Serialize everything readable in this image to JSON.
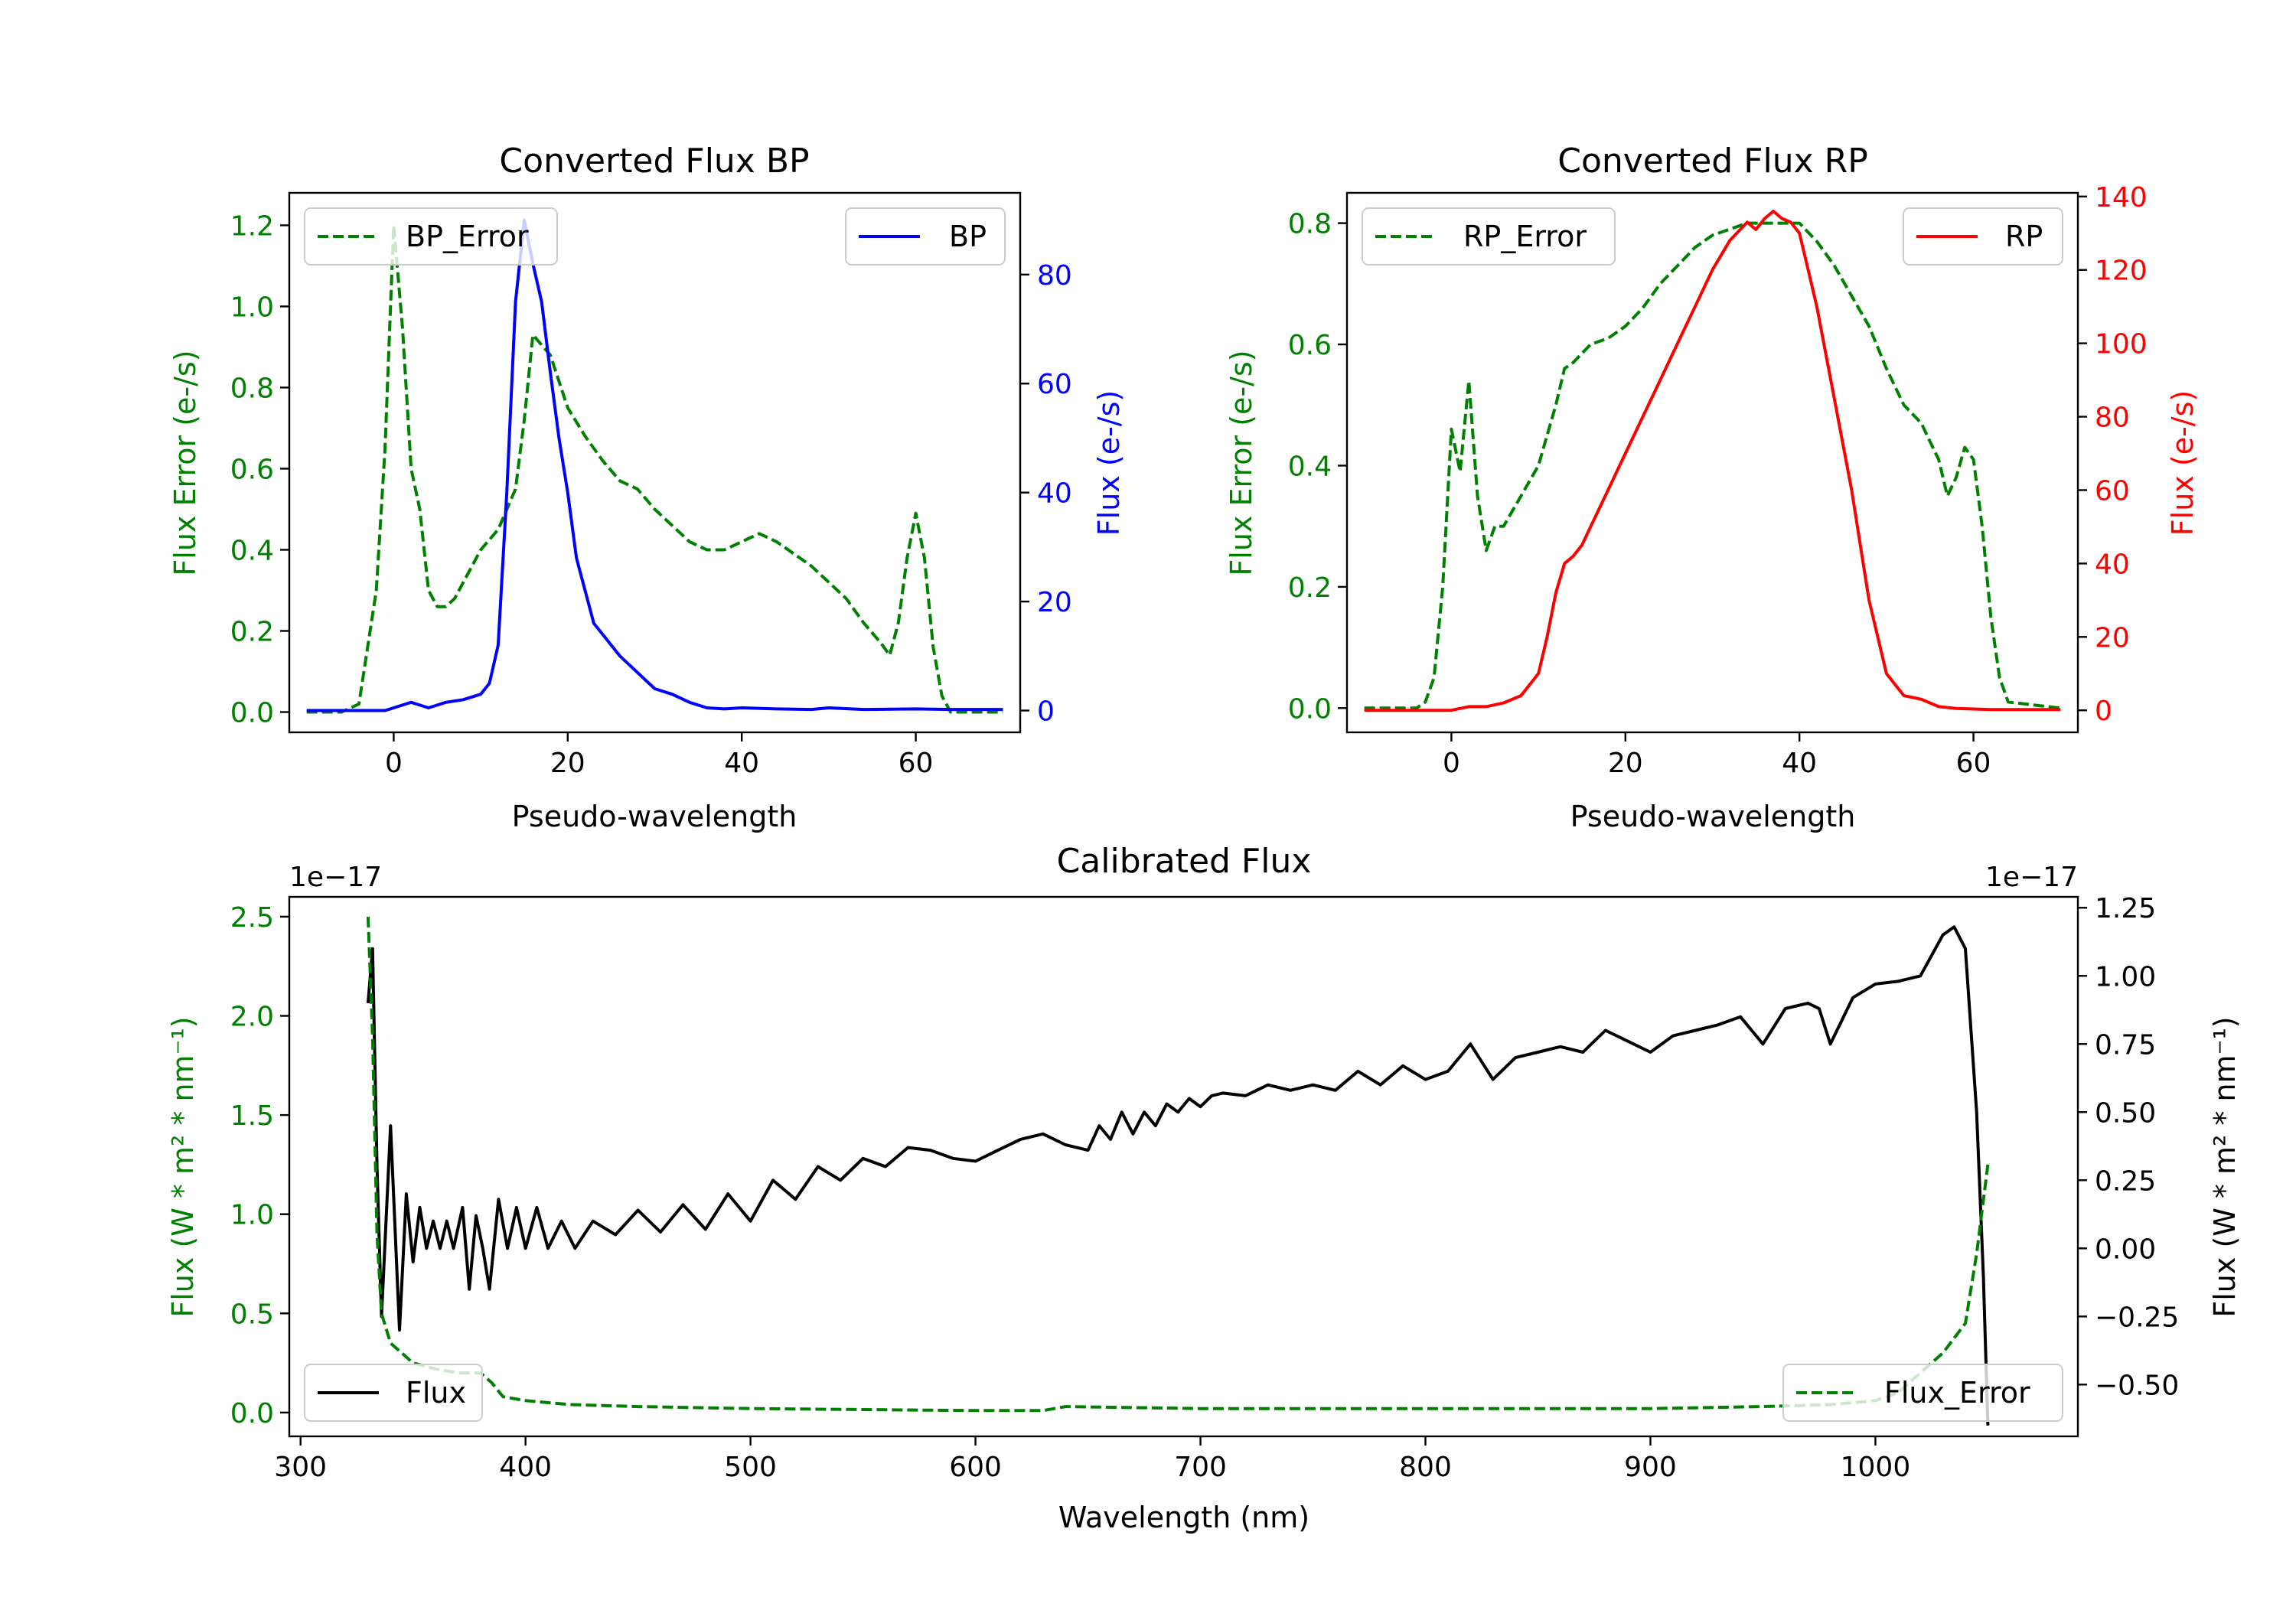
{
  "colors": {
    "green": "#008000",
    "blue": "#0000ff",
    "red": "#ff0000",
    "black": "#000000"
  },
  "chart_data": [
    {
      "type": "line",
      "title": "Converted Flux BP",
      "xlabel": "Pseudo-wavelength",
      "ylabel_left": "Flux Error (e-/s)",
      "ylabel_right": "Flux (e-/s)",
      "xlim": [
        -12,
        72
      ],
      "ylim_left": [
        -0.05,
        1.28
      ],
      "ylim_right": [
        -4,
        95
      ],
      "xticks": [
        0,
        20,
        40,
        60
      ],
      "xtick_labels": [
        "0",
        "20",
        "40",
        "60"
      ],
      "yticks_left": [
        0.0,
        0.2,
        0.4,
        0.6,
        0.8,
        1.0,
        1.2
      ],
      "ytick_labels_left": [
        "0.0",
        "0.2",
        "0.4",
        "0.6",
        "0.8",
        "1.0",
        "1.2"
      ],
      "yticks_right": [
        0,
        20,
        40,
        60,
        80
      ],
      "ytick_labels_right": [
        "0",
        "20",
        "40",
        "60",
        "80"
      ],
      "series": [
        {
          "name": "BP_Error",
          "axis": "left",
          "style": "dashed",
          "color": "#008000",
          "x": [
            -10,
            -6,
            -4,
            -2,
            -1,
            0,
            1,
            2,
            3,
            4,
            5,
            6,
            7,
            8,
            10,
            12,
            14,
            15,
            16,
            18,
            20,
            22,
            24,
            26,
            28,
            30,
            32,
            34,
            36,
            38,
            40,
            42,
            44,
            46,
            48,
            50,
            52,
            54,
            56,
            57,
            58,
            59,
            60,
            61,
            62,
            63,
            64,
            66,
            70
          ],
          "y": [
            0,
            0,
            0.02,
            0.3,
            0.65,
            1.2,
            0.95,
            0.6,
            0.5,
            0.3,
            0.26,
            0.26,
            0.28,
            0.32,
            0.4,
            0.45,
            0.55,
            0.72,
            0.93,
            0.88,
            0.75,
            0.68,
            0.62,
            0.57,
            0.55,
            0.5,
            0.46,
            0.42,
            0.4,
            0.4,
            0.42,
            0.44,
            0.42,
            0.39,
            0.36,
            0.32,
            0.28,
            0.22,
            0.17,
            0.14,
            0.22,
            0.38,
            0.49,
            0.38,
            0.16,
            0.04,
            0.0,
            0.0,
            0.0
          ]
        },
        {
          "name": "BP",
          "axis": "right",
          "style": "solid",
          "color": "#0000ff",
          "x": [
            -10,
            -4,
            -1,
            0,
            1,
            2,
            3,
            4,
            5,
            6,
            8,
            10,
            11,
            12,
            13,
            14,
            15,
            16,
            17,
            18,
            19,
            20,
            21,
            22,
            23,
            24,
            25,
            26,
            28,
            30,
            32,
            34,
            36,
            38,
            40,
            44,
            48,
            50,
            54,
            60,
            64,
            70
          ],
          "y": [
            0,
            0,
            0,
            0.5,
            1,
            1.5,
            1,
            0.5,
            1,
            1.5,
            2,
            3,
            5,
            12,
            40,
            75,
            90,
            82,
            75,
            62,
            50,
            40,
            28,
            22,
            16,
            14,
            12,
            10,
            7,
            4,
            3,
            1.5,
            0.5,
            0.3,
            0.5,
            0.3,
            0.2,
            0.5,
            0.2,
            0.3,
            0.2,
            0.2
          ]
        }
      ],
      "legend": [
        {
          "label": "BP_Error",
          "position": "top-left"
        },
        {
          "label": "BP",
          "position": "top-right"
        }
      ]
    },
    {
      "type": "line",
      "title": "Converted Flux RP",
      "xlabel": "Pseudo-wavelength",
      "ylabel_left": "Flux Error (e-/s)",
      "ylabel_right": "Flux (e-/s)",
      "xlim": [
        -12,
        72
      ],
      "ylim_left": [
        -0.04,
        0.85
      ],
      "ylim_right": [
        -6,
        141
      ],
      "xticks": [
        0,
        20,
        40,
        60
      ],
      "xtick_labels": [
        "0",
        "20",
        "40",
        "60"
      ],
      "yticks_left": [
        0.0,
        0.2,
        0.4,
        0.6,
        0.8
      ],
      "ytick_labels_left": [
        "0.0",
        "0.2",
        "0.4",
        "0.6",
        "0.8"
      ],
      "yticks_right": [
        0,
        20,
        40,
        60,
        80,
        100,
        120,
        140
      ],
      "ytick_labels_right": [
        "0",
        "20",
        "40",
        "60",
        "80",
        "100",
        "120",
        "140"
      ],
      "series": [
        {
          "name": "RP_Error",
          "axis": "right_scaled",
          "style": "dashed",
          "color": "#008000",
          "x": [
            -10,
            -4,
            -3,
            -2,
            -1,
            0,
            1,
            2,
            3,
            4,
            5,
            6,
            8,
            10,
            12,
            13,
            14,
            16,
            18,
            20,
            22,
            24,
            26,
            28,
            30,
            32,
            34,
            36,
            38,
            40,
            42,
            44,
            46,
            48,
            50,
            52,
            54,
            55,
            56,
            57,
            58,
            59,
            60,
            61,
            62,
            63,
            64,
            70
          ],
          "y": [
            0,
            0,
            0.01,
            0.05,
            0.2,
            0.46,
            0.39,
            0.54,
            0.35,
            0.26,
            0.3,
            0.3,
            0.35,
            0.4,
            0.5,
            0.56,
            0.57,
            0.6,
            0.61,
            0.63,
            0.66,
            0.7,
            0.73,
            0.76,
            0.78,
            0.79,
            0.8,
            0.8,
            0.8,
            0.8,
            0.77,
            0.73,
            0.68,
            0.63,
            0.56,
            0.5,
            0.47,
            0.44,
            0.41,
            0.35,
            0.38,
            0.43,
            0.41,
            0.3,
            0.15,
            0.05,
            0.01,
            0.0
          ]
        },
        {
          "name": "RP",
          "axis": "right",
          "style": "solid",
          "color": "#ff0000",
          "x": [
            -10,
            -2,
            0,
            2,
            4,
            6,
            8,
            10,
            11,
            12,
            13,
            14,
            15,
            16,
            18,
            20,
            22,
            24,
            26,
            28,
            30,
            32,
            34,
            35,
            36,
            37,
            38,
            39,
            40,
            41,
            42,
            44,
            46,
            48,
            50,
            52,
            54,
            56,
            58,
            62,
            70
          ],
          "y": [
            0,
            0,
            0,
            1,
            1,
            2,
            4,
            10,
            20,
            32,
            40,
            42,
            45,
            50,
            60,
            70,
            80,
            90,
            100,
            110,
            120,
            128,
            133,
            131,
            134,
            136,
            134,
            133,
            130,
            120,
            110,
            85,
            60,
            30,
            10,
            4,
            3,
            1,
            0.5,
            0.2,
            0.2
          ]
        }
      ],
      "legend": [
        {
          "label": "RP_Error",
          "position": "top-left"
        },
        {
          "label": "RP",
          "position": "top-right"
        }
      ]
    },
    {
      "type": "line",
      "title": "Calibrated Flux",
      "xlabel": "Wavelength (nm)",
      "ylabel_left": "Flux (W * m² * nm⁻¹)",
      "ylabel_right": "Flux (W * m² * nm⁻¹)",
      "offset_left": "1e−17",
      "offset_right": "1e−17",
      "xlim": [
        295,
        1090
      ],
      "ylim_left": [
        -0.12,
        2.6
      ],
      "ylim_right": [
        -0.69,
        1.29
      ],
      "xticks": [
        300,
        400,
        500,
        600,
        700,
        800,
        900,
        1000
      ],
      "xtick_labels": [
        "300",
        "400",
        "500",
        "600",
        "700",
        "800",
        "900",
        "1000"
      ],
      "yticks_left": [
        0.0,
        0.5,
        1.0,
        1.5,
        2.0,
        2.5
      ],
      "ytick_labels_left": [
        "0.0",
        "0.5",
        "1.0",
        "1.5",
        "2.0",
        "2.5"
      ],
      "yticks_right": [
        -0.5,
        -0.25,
        0.0,
        0.25,
        0.5,
        0.75,
        1.0,
        1.25
      ],
      "ytick_labels_right": [
        "−0.50",
        "−0.25",
        "0.00",
        "0.25",
        "0.50",
        "0.75",
        "1.00",
        "1.25"
      ],
      "series": [
        {
          "name": "Flux",
          "axis": "right",
          "style": "solid",
          "color": "#000000",
          "x": [
            330,
            332,
            334,
            336,
            340,
            344,
            347,
            350,
            353,
            356,
            359,
            362,
            365,
            368,
            372,
            375,
            378,
            381,
            384,
            388,
            392,
            396,
            400,
            405,
            410,
            416,
            422,
            430,
            440,
            450,
            460,
            470,
            480,
            490,
            500,
            510,
            520,
            530,
            540,
            550,
            560,
            570,
            580,
            590,
            600,
            610,
            620,
            630,
            640,
            650,
            655,
            660,
            665,
            670,
            675,
            680,
            685,
            690,
            695,
            700,
            705,
            710,
            720,
            730,
            740,
            750,
            760,
            770,
            780,
            790,
            800,
            810,
            820,
            830,
            840,
            850,
            860,
            870,
            880,
            890,
            900,
            910,
            920,
            930,
            940,
            950,
            960,
            970,
            975,
            980,
            990,
            1000,
            1010,
            1020,
            1030,
            1035,
            1040,
            1045,
            1048,
            1050
          ],
          "y": [
            0.9,
            1.1,
            0.3,
            -0.25,
            0.45,
            -0.3,
            0.2,
            -0.05,
            0.15,
            0.0,
            0.1,
            0.0,
            0.1,
            0.0,
            0.15,
            -0.15,
            0.12,
            0.0,
            -0.15,
            0.18,
            0.0,
            0.15,
            0.0,
            0.15,
            0.0,
            0.1,
            0.0,
            0.1,
            0.05,
            0.14,
            0.06,
            0.16,
            0.07,
            0.2,
            0.1,
            0.25,
            0.18,
            0.3,
            0.25,
            0.33,
            0.3,
            0.37,
            0.36,
            0.33,
            0.32,
            0.36,
            0.4,
            0.42,
            0.38,
            0.36,
            0.45,
            0.4,
            0.5,
            0.42,
            0.5,
            0.45,
            0.53,
            0.5,
            0.55,
            0.52,
            0.56,
            0.57,
            0.56,
            0.6,
            0.58,
            0.6,
            0.58,
            0.65,
            0.6,
            0.67,
            0.62,
            0.65,
            0.75,
            0.62,
            0.7,
            0.72,
            0.74,
            0.72,
            0.8,
            0.76,
            0.72,
            0.78,
            0.8,
            0.82,
            0.85,
            0.75,
            0.88,
            0.9,
            0.88,
            0.75,
            0.92,
            0.97,
            0.98,
            1.0,
            1.15,
            1.18,
            1.1,
            0.5,
            -0.1,
            -0.65
          ]
        },
        {
          "name": "Flux_Error",
          "axis": "left",
          "style": "dashed",
          "color": "#008000",
          "x": [
            330,
            332,
            334,
            336,
            340,
            345,
            350,
            360,
            370,
            380,
            385,
            390,
            400,
            420,
            450,
            500,
            600,
            630,
            640,
            700,
            800,
            900,
            950,
            980,
            1000,
            1010,
            1020,
            1030,
            1040,
            1045,
            1050
          ],
          "y": [
            2.5,
            1.9,
            0.9,
            0.5,
            0.35,
            0.3,
            0.25,
            0.22,
            0.2,
            0.2,
            0.15,
            0.08,
            0.06,
            0.04,
            0.03,
            0.02,
            0.01,
            0.01,
            0.03,
            0.02,
            0.02,
            0.02,
            0.03,
            0.04,
            0.06,
            0.1,
            0.2,
            0.3,
            0.45,
            0.8,
            1.25
          ]
        }
      ],
      "legend": [
        {
          "label": "Flux",
          "position": "bottom-left"
        },
        {
          "label": "Flux_Error",
          "position": "bottom-right"
        }
      ]
    }
  ]
}
